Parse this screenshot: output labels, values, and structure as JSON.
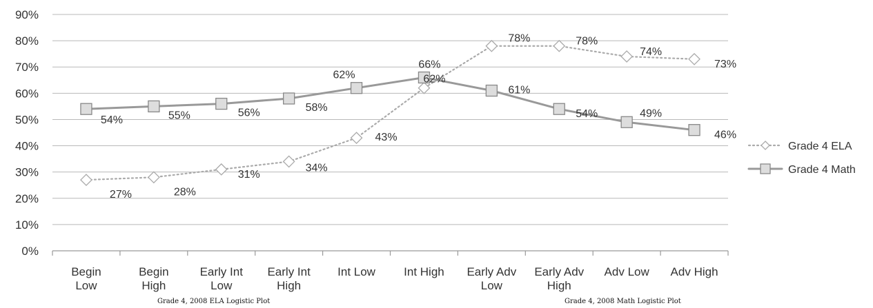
{
  "chart_data": {
    "type": "line",
    "categories": [
      [
        "Begin",
        "Low"
      ],
      [
        "Begin",
        "High"
      ],
      [
        "Early Int",
        "Low"
      ],
      [
        "Early Int",
        "High"
      ],
      [
        "Int Low"
      ],
      [
        "Int High"
      ],
      [
        "Early Adv",
        "Low"
      ],
      [
        "Early Adv",
        "High"
      ],
      [
        "Adv Low"
      ],
      [
        "Adv High"
      ]
    ],
    "series": [
      {
        "name": "Grade 4 ELA",
        "values": [
          27,
          28,
          31,
          34,
          43,
          62,
          78,
          78,
          74,
          73
        ],
        "color": "#aaaaaa",
        "line_style": "dotted",
        "marker": "diamond"
      },
      {
        "name": "Grade 4 Math",
        "values": [
          54,
          55,
          56,
          58,
          62,
          66,
          61,
          54,
          49,
          46
        ],
        "color": "#999999",
        "line_style": "solid",
        "marker": "square"
      }
    ],
    "data_labels": {
      "Grade 4 ELA": [
        "27%",
        "28%",
        "31%",
        "34%",
        "43%",
        "62%",
        "78%",
        "78%",
        "74%",
        "73%"
      ],
      "Grade 4 Math": [
        "54%",
        "55%",
        "56%",
        "58%",
        "62%",
        "66%",
        "61%",
        "54%",
        "49%",
        "46%"
      ]
    },
    "ylim": [
      0,
      90
    ],
    "yticks": [
      "0%",
      "10%",
      "20%",
      "30%",
      "40%",
      "50%",
      "60%",
      "70%",
      "80%",
      "90%"
    ],
    "grid": true,
    "legend_position": "right",
    "title": "",
    "xlabel": "",
    "ylabel": ""
  },
  "captions": {
    "ela": "Grade 4, 2008 ELA Logistic Plot",
    "math": "Grade 4, 2008 Math Logistic Plot"
  }
}
